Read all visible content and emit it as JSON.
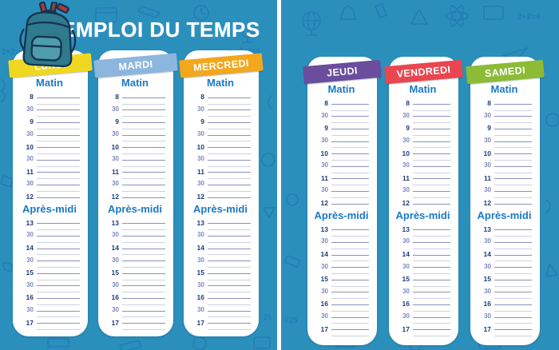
{
  "title": "EMPLOI DU TEMPS",
  "pages": [
    {
      "days": [
        {
          "name": "LUNDI",
          "color": "#F0D822"
        },
        {
          "name": "MARDI",
          "color": "#8CB6DE"
        },
        {
          "name": "MERCREDI",
          "color": "#F2A71D"
        }
      ]
    },
    {
      "days": [
        {
          "name": "JEUDI",
          "color": "#6A4D9C"
        },
        {
          "name": "VENDREDI",
          "color": "#E9464F"
        },
        {
          "name": "SAMEDI",
          "color": "#8CBB35"
        }
      ]
    }
  ],
  "sections": {
    "morning": "Matin",
    "afternoon": "Après-midi"
  },
  "hours": {
    "morning": [
      "8",
      "30",
      "9",
      "30",
      "10",
      "30",
      "11",
      "30",
      "12"
    ],
    "afternoon": [
      "13",
      "30",
      "14",
      "30",
      "15",
      "30",
      "16",
      "30",
      "17"
    ]
  },
  "background_doodles": {
    "texts": [
      "2+2=4",
      "IDEA",
      "√25",
      "25"
    ]
  },
  "colors": {
    "background": "#2B8FBC",
    "doodle": "#1A6CB3",
    "card": "#FFFFFF",
    "divider": "#FFFFFF",
    "title_text": "#FFFFFF",
    "tab_text": "#FFFFFF",
    "section_heading": "#1B79C5",
    "hour_number": "#1E3A7C",
    "half_hour": "#7E88BE",
    "line_labeled": "#8A92BC",
    "line_blank": "#CDD2E4"
  }
}
